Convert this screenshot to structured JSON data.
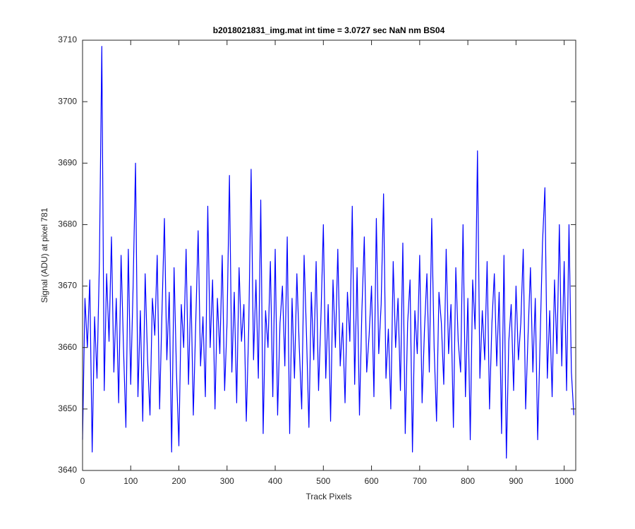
{
  "chart_data": {
    "type": "line",
    "title": "b2018021831_img.mat int time = 3.0727 sec  NaN nm BS04",
    "x_label": "Track Pixels",
    "y_label": "Signal (ADU) at pixel 781",
    "xlim": [
      0,
      1024
    ],
    "ylim": [
      3640,
      3710
    ],
    "xticks": [
      0,
      100,
      200,
      300,
      400,
      500,
      600,
      700,
      800,
      900,
      1000
    ],
    "yticks": [
      3640,
      3650,
      3660,
      3670,
      3680,
      3690,
      3700,
      3710
    ],
    "grid": false,
    "x": [
      0,
      5,
      10,
      15,
      20,
      25,
      30,
      35,
      40,
      45,
      50,
      55,
      60,
      65,
      70,
      75,
      80,
      85,
      90,
      95,
      100,
      105,
      110,
      115,
      120,
      125,
      130,
      135,
      140,
      145,
      150,
      155,
      160,
      165,
      170,
      175,
      180,
      185,
      190,
      195,
      200,
      205,
      210,
      215,
      220,
      225,
      230,
      235,
      240,
      245,
      250,
      255,
      260,
      265,
      270,
      275,
      280,
      285,
      290,
      295,
      300,
      305,
      310,
      315,
      320,
      325,
      330,
      335,
      340,
      345,
      350,
      355,
      360,
      365,
      370,
      375,
      380,
      385,
      390,
      395,
      400,
      405,
      410,
      415,
      420,
      425,
      430,
      435,
      440,
      445,
      450,
      455,
      460,
      465,
      470,
      475,
      480,
      485,
      490,
      495,
      500,
      505,
      510,
      515,
      520,
      525,
      530,
      535,
      540,
      545,
      550,
      555,
      560,
      565,
      570,
      575,
      580,
      585,
      590,
      595,
      600,
      605,
      610,
      615,
      620,
      625,
      630,
      635,
      640,
      645,
      650,
      655,
      660,
      665,
      670,
      675,
      680,
      685,
      690,
      695,
      700,
      705,
      710,
      715,
      720,
      725,
      730,
      735,
      740,
      745,
      750,
      755,
      760,
      765,
      770,
      775,
      780,
      785,
      790,
      795,
      800,
      805,
      810,
      815,
      820,
      825,
      830,
      835,
      840,
      845,
      850,
      855,
      860,
      865,
      870,
      875,
      880,
      885,
      890,
      895,
      900,
      905,
      910,
      915,
      920,
      925,
      930,
      935,
      940,
      945,
      950,
      955,
      960,
      965,
      970,
      975,
      980,
      985,
      990,
      995,
      1000,
      1005,
      1010,
      1015,
      1020
    ],
    "series": [
      {
        "color": "#0000ff",
        "values": [
          3645,
          3668,
          3660,
          3671,
          3643,
          3665,
          3655,
          3674,
          3709,
          3653,
          3672,
          3661,
          3678,
          3656,
          3668,
          3651,
          3675,
          3660,
          3647,
          3676,
          3654,
          3670,
          3690,
          3652,
          3666,
          3648,
          3672,
          3658,
          3649,
          3668,
          3662,
          3675,
          3650,
          3666,
          3681,
          3658,
          3669,
          3643,
          3673,
          3656,
          3644,
          3667,
          3660,
          3676,
          3654,
          3670,
          3649,
          3664,
          3679,
          3657,
          3665,
          3652,
          3683,
          3660,
          3671,
          3650,
          3668,
          3659,
          3675,
          3653,
          3664,
          3688,
          3656,
          3669,
          3651,
          3673,
          3661,
          3667,
          3648,
          3663,
          3689,
          3658,
          3671,
          3655,
          3684,
          3646,
          3666,
          3660,
          3674,
          3652,
          3676,
          3649,
          3664,
          3670,
          3657,
          3678,
          3646,
          3668,
          3655,
          3672,
          3660,
          3650,
          3675,
          3662,
          3647,
          3669,
          3658,
          3674,
          3653,
          3665,
          3680,
          3655,
          3667,
          3648,
          3671,
          3660,
          3676,
          3657,
          3664,
          3651,
          3669,
          3661,
          3683,
          3654,
          3673,
          3649,
          3666,
          3678,
          3656,
          3662,
          3670,
          3652,
          3681,
          3659,
          3667,
          3685,
          3655,
          3663,
          3650,
          3674,
          3660,
          3668,
          3653,
          3677,
          3646,
          3664,
          3671,
          3643,
          3666,
          3659,
          3675,
          3651,
          3663,
          3672,
          3656,
          3681,
          3660,
          3648,
          3669,
          3664,
          3654,
          3676,
          3659,
          3667,
          3647,
          3673,
          3661,
          3656,
          3680,
          3652,
          3668,
          3645,
          3671,
          3663,
          3692,
          3655,
          3666,
          3658,
          3674,
          3650,
          3664,
          3672,
          3657,
          3669,
          3646,
          3675,
          3642,
          3661,
          3667,
          3653,
          3670,
          3658,
          3664,
          3676,
          3650,
          3662,
          3673,
          3656,
          3668,
          3645,
          3661,
          3677,
          3686,
          3655,
          3666,
          3652,
          3671,
          3659,
          3680,
          3657,
          3674,
          3653,
          3680,
          3656,
          3649
        ]
      }
    ]
  }
}
